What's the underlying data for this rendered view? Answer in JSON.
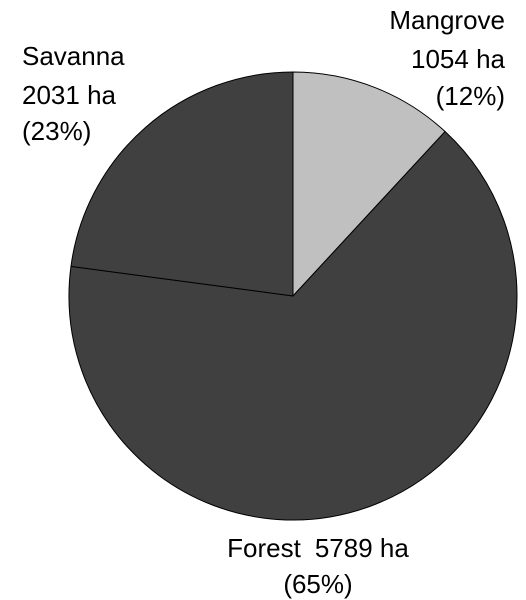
{
  "chart_data": {
    "type": "pie",
    "categories": [
      "Mangrove",
      "Forest",
      "Savanna"
    ],
    "values": [
      1054,
      5789,
      2031
    ],
    "value_labels": [
      "1054 ha",
      "5789 ha",
      "2031 ha"
    ],
    "percents": [
      12,
      65,
      23
    ],
    "percent_labels": [
      "(12%)",
      "(65%)",
      "(23%)"
    ],
    "colors": [
      "#c0c0c0",
      "#404040",
      "#404040"
    ]
  }
}
